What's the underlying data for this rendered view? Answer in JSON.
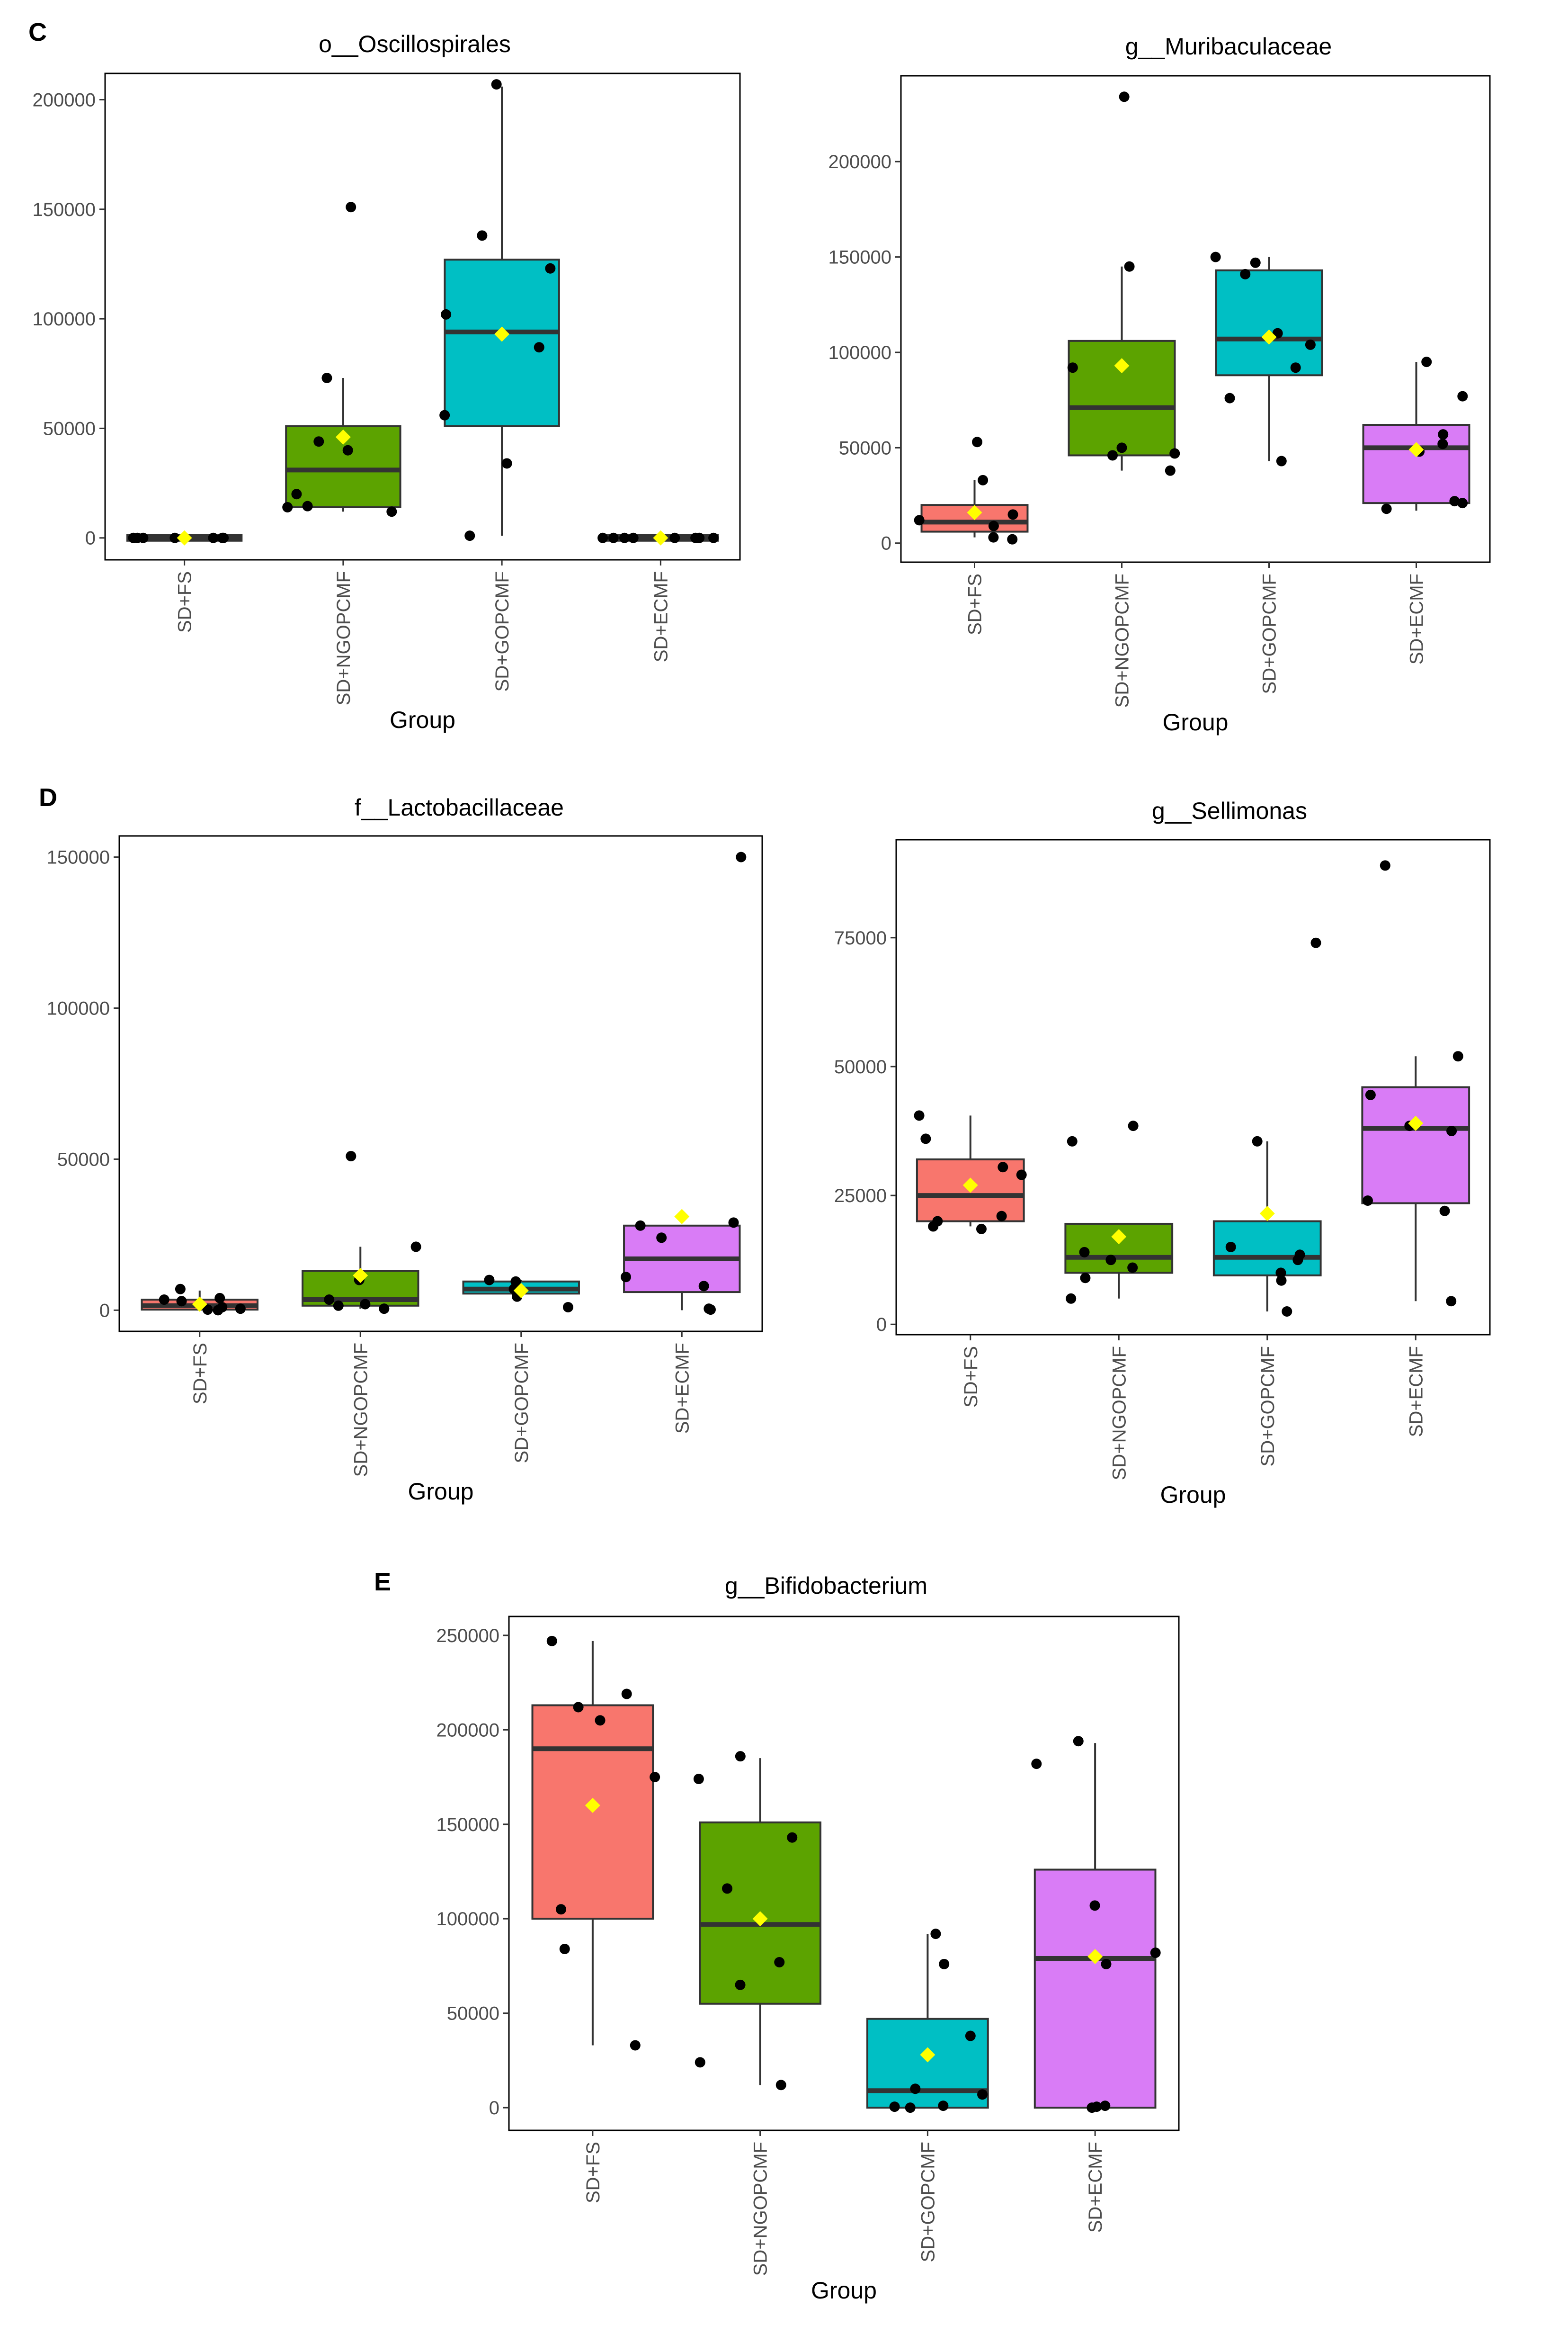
{
  "figure": {
    "panel_labels": [
      "C",
      "D",
      "E"
    ]
  },
  "colors": {
    "SD+FS": "#F8766D",
    "SD+NGOPCMF": "#5CA300",
    "SD+GOPCMF": "#00BFC4",
    "SD+ECMF": "#D97CF6",
    "mean_marker": "#FFFF00",
    "points": "#000000",
    "median": "#333333"
  },
  "chart_data": [
    {
      "type": "boxplot",
      "panel": "C",
      "title": "o__Oscillospirales",
      "xlabel": "Group",
      "ylabel": "",
      "categories": [
        "SD+FS",
        "SD+NGOPCMF",
        "SD+GOPCMF",
        "SD+ECMF"
      ],
      "yticks": [
        0,
        50000,
        100000,
        150000,
        200000
      ],
      "ytick_labels": [
        "0",
        "50000",
        "100000",
        "150000",
        "200000"
      ],
      "ylim": [
        -10000,
        212000
      ],
      "boxes": [
        {
          "group": "SD+FS",
          "q1": 0,
          "median": 0,
          "q3": 0,
          "whisker_low": 0,
          "whisker_high": 0,
          "mean": 0,
          "points": [
            0,
            0,
            0,
            0,
            0,
            0,
            0
          ]
        },
        {
          "group": "SD+NGOPCMF",
          "q1": 14000,
          "median": 31000,
          "q3": 51000,
          "whisker_low": 12000,
          "whisker_high": 73000,
          "mean": 46000,
          "points": [
            151000,
            73000,
            44000,
            40000,
            20000,
            14000,
            12000,
            14500
          ]
        },
        {
          "group": "SD+GOPCMF",
          "q1": 51000,
          "median": 94000,
          "q3": 127000,
          "whisker_low": 1000,
          "whisker_high": 206000,
          "mean": 93000,
          "points": [
            207000,
            138000,
            123000,
            102000,
            87000,
            56000,
            34000,
            1000
          ]
        },
        {
          "group": "SD+ECMF",
          "q1": 0,
          "median": 0,
          "q3": 0,
          "whisker_low": 0,
          "whisker_high": 0,
          "mean": 0,
          "points": [
            0,
            0,
            0,
            0,
            0,
            0,
            0,
            0
          ]
        }
      ]
    },
    {
      "type": "boxplot",
      "panel": "C",
      "title": "g__Muribaculaceae",
      "xlabel": "Group",
      "ylabel": "",
      "categories": [
        "SD+FS",
        "SD+NGOPCMF",
        "SD+GOPCMF",
        "SD+ECMF"
      ],
      "yticks": [
        0,
        50000,
        100000,
        150000,
        200000
      ],
      "ytick_labels": [
        "0",
        "50000",
        "100000",
        "150000",
        "200000"
      ],
      "ylim": [
        -10000,
        245000
      ],
      "boxes": [
        {
          "group": "SD+FS",
          "q1": 6000,
          "median": 11000,
          "q3": 20000,
          "whisker_low": 3000,
          "whisker_high": 33000,
          "mean": 16000,
          "points": [
            53000,
            33000,
            15000,
            12000,
            9000,
            3000,
            2000
          ]
        },
        {
          "group": "SD+NGOPCMF",
          "q1": 46000,
          "median": 71000,
          "q3": 106000,
          "whisker_low": 38000,
          "whisker_high": 145000,
          "mean": 93000,
          "points": [
            234000,
            145000,
            92000,
            50000,
            47000,
            46000,
            38000
          ]
        },
        {
          "group": "SD+GOPCMF",
          "q1": 88000,
          "median": 107000,
          "q3": 143000,
          "whisker_low": 43000,
          "whisker_high": 150000,
          "mean": 108000,
          "points": [
            150000,
            147000,
            141000,
            110000,
            104000,
            92000,
            76000,
            43000
          ]
        },
        {
          "group": "SD+ECMF",
          "q1": 21000,
          "median": 50000,
          "q3": 62000,
          "whisker_low": 17000,
          "whisker_high": 95000,
          "mean": 49000,
          "points": [
            95000,
            77000,
            57000,
            52000,
            48000,
            22000,
            21000,
            18000
          ]
        }
      ]
    },
    {
      "type": "boxplot",
      "panel": "D",
      "title": "f__Lactobacillaceae",
      "xlabel": "Group",
      "ylabel": "",
      "categories": [
        "SD+FS",
        "SD+NGOPCMF",
        "SD+GOPCMF",
        "SD+ECMF"
      ],
      "yticks": [
        0,
        50000,
        100000,
        150000
      ],
      "ytick_labels": [
        "0",
        "50000",
        "100000",
        "150000"
      ],
      "ylim": [
        -7000,
        157000
      ],
      "boxes": [
        {
          "group": "SD+FS",
          "q1": 200,
          "median": 1500,
          "q3": 3500,
          "whisker_low": 0,
          "whisker_high": 6500,
          "mean": 2000,
          "points": [
            7000,
            4000,
            3500,
            3000,
            1000,
            500,
            200,
            0
          ]
        },
        {
          "group": "SD+NGOPCMF",
          "q1": 1500,
          "median": 3500,
          "q3": 13000,
          "whisker_low": 500,
          "whisker_high": 21000,
          "mean": 11500,
          "points": [
            51000,
            21000,
            10000,
            3500,
            2000,
            1500,
            500
          ]
        },
        {
          "group": "SD+GOPCMF",
          "q1": 5500,
          "median": 7000,
          "q3": 9500,
          "whisker_low": 5000,
          "whisker_high": 10000,
          "mean": 6500,
          "points": [
            10000,
            9500,
            7000,
            5000,
            4500,
            1000
          ]
        },
        {
          "group": "SD+ECMF",
          "q1": 6000,
          "median": 17000,
          "q3": 28000,
          "whisker_low": 0,
          "whisker_high": 28000,
          "mean": 31000,
          "points": [
            150000,
            29000,
            28000,
            24000,
            11000,
            8000,
            500,
            200
          ]
        }
      ]
    },
    {
      "type": "boxplot",
      "panel": "D",
      "title": "g__Sellimonas",
      "xlabel": "Group",
      "ylabel": "",
      "categories": [
        "SD+FS",
        "SD+NGOPCMF",
        "SD+GOPCMF",
        "SD+ECMF"
      ],
      "yticks": [
        0,
        25000,
        50000,
        75000
      ],
      "ytick_labels": [
        "0",
        "25000",
        "50000",
        "75000"
      ],
      "ylim": [
        -2000,
        94000
      ],
      "boxes": [
        {
          "group": "SD+FS",
          "q1": 20000,
          "median": 25000,
          "q3": 32000,
          "whisker_low": 19000,
          "whisker_high": 40500,
          "mean": 27000,
          "points": [
            40500,
            36000,
            30500,
            29000,
            21000,
            20000,
            19000,
            18500
          ]
        },
        {
          "group": "SD+NGOPCMF",
          "q1": 10000,
          "median": 13000,
          "q3": 19500,
          "whisker_low": 5000,
          "whisker_high": 19500,
          "mean": 17000,
          "points": [
            38500,
            35500,
            14000,
            12500,
            11000,
            9000,
            5000
          ]
        },
        {
          "group": "SD+GOPCMF",
          "q1": 9500,
          "median": 13000,
          "q3": 20000,
          "whisker_low": 2500,
          "whisker_high": 35500,
          "mean": 21500,
          "points": [
            74000,
            35500,
            15000,
            13500,
            12500,
            10000,
            8500,
            2500
          ]
        },
        {
          "group": "SD+ECMF",
          "q1": 23500,
          "median": 38000,
          "q3": 46000,
          "whisker_low": 4500,
          "whisker_high": 52000,
          "mean": 39000,
          "points": [
            89000,
            52000,
            44500,
            38500,
            37500,
            24000,
            22000,
            4500
          ]
        }
      ]
    },
    {
      "type": "boxplot",
      "panel": "E",
      "title": "g__Bifidobacterium",
      "xlabel": "Group",
      "ylabel": "",
      "categories": [
        "SD+FS",
        "SD+NGOPCMF",
        "SD+GOPCMF",
        "SD+ECMF"
      ],
      "yticks": [
        0,
        50000,
        100000,
        150000,
        200000,
        250000
      ],
      "ytick_labels": [
        "0",
        "50000",
        "100000",
        "150000",
        "200000",
        "250000"
      ],
      "ylim": [
        -12000,
        260000
      ],
      "boxes": [
        {
          "group": "SD+FS",
          "q1": 100000,
          "median": 190000,
          "q3": 213000,
          "whisker_low": 33000,
          "whisker_high": 247000,
          "mean": 160000,
          "points": [
            247000,
            219000,
            212000,
            205000,
            175000,
            105000,
            84000,
            33000
          ]
        },
        {
          "group": "SD+NGOPCMF",
          "q1": 55000,
          "median": 97000,
          "q3": 151000,
          "whisker_low": 12000,
          "whisker_high": 185000,
          "mean": 100000,
          "points": [
            186000,
            174000,
            143000,
            116000,
            77000,
            65000,
            24000,
            12000
          ]
        },
        {
          "group": "SD+GOPCMF",
          "q1": 0,
          "median": 9000,
          "q3": 47000,
          "whisker_low": 0,
          "whisker_high": 92000,
          "mean": 28000,
          "points": [
            92000,
            76000,
            38000,
            10000,
            7000,
            1000,
            500,
            0
          ]
        },
        {
          "group": "SD+ECMF",
          "q1": 0,
          "median": 79000,
          "q3": 126000,
          "whisker_low": 0,
          "whisker_high": 193000,
          "mean": 80000,
          "points": [
            194000,
            182000,
            107000,
            82000,
            76000,
            1000,
            500,
            0
          ]
        }
      ]
    }
  ]
}
